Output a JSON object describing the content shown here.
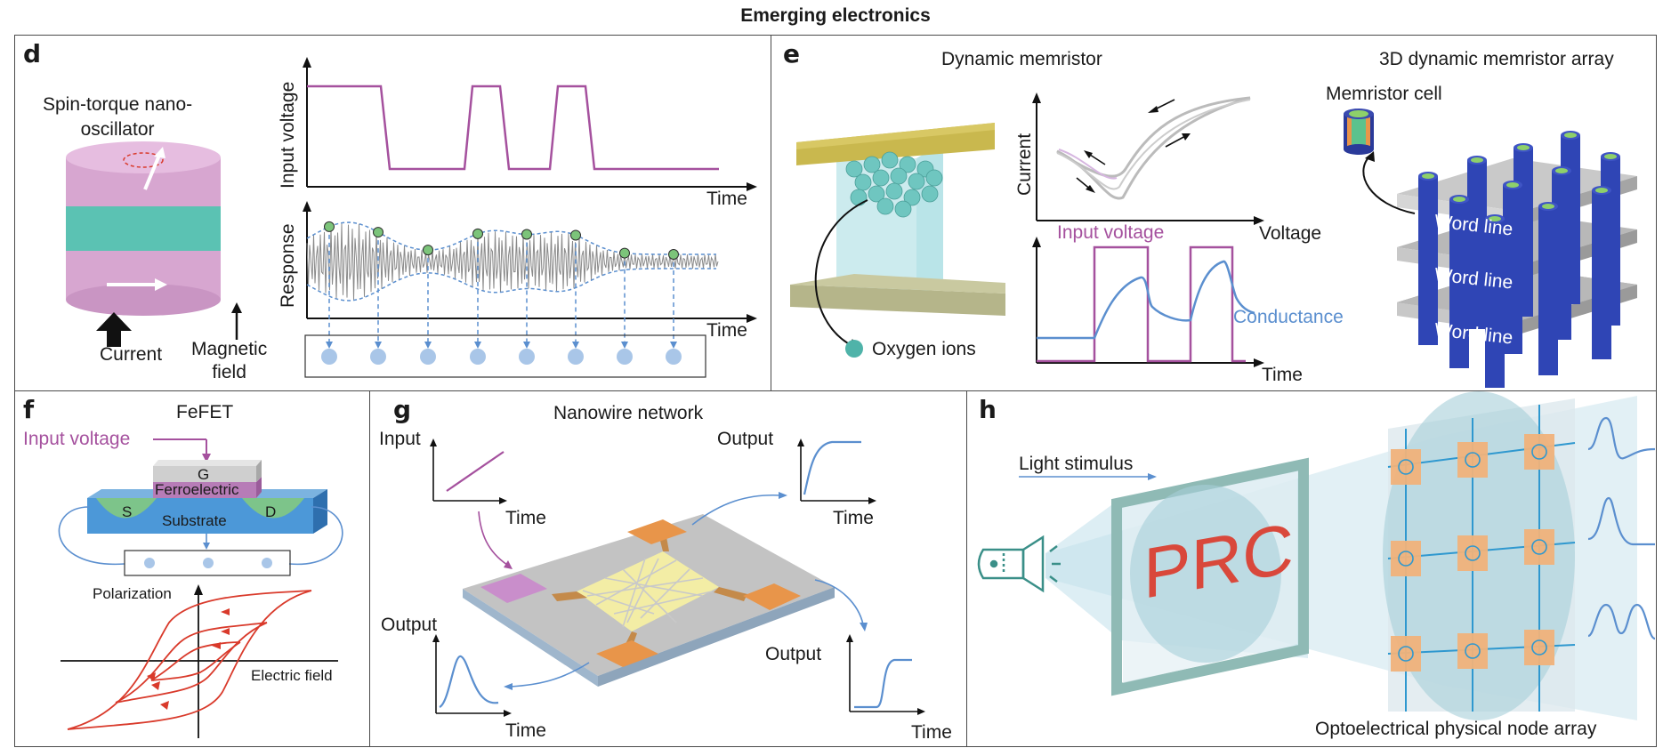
{
  "title": "Emerging electronics",
  "colors": {
    "purple": "#a5519e",
    "blue": "#5b8fcf",
    "red": "#d93a2b",
    "teal": "#4fb3a9",
    "orange": "#e8954a",
    "frame": "#4a4a4a"
  },
  "panel_d": {
    "label": "d",
    "device": "Spin-torque nano-\noscillator",
    "current": "Current",
    "magnetic_field": "Magnetic\nfield",
    "input_axis": "Input voltage",
    "response_axis": "Response",
    "time1": "Time",
    "time2": "Time",
    "icons": [
      "cylinder-stack-icon",
      "arrow-up-icon"
    ]
  },
  "panel_e": {
    "label": "e",
    "title_left": "Dynamic memristor",
    "title_right": "3D dynamic memristor array",
    "oxygen_ions": "Oxygen ions",
    "current_axis": "Current",
    "voltage_axis": "Voltage",
    "input_voltage": "Input voltage",
    "conductance": "Conductance",
    "time": "Time",
    "memristor_cell": "Memristor cell",
    "word_lines": [
      "Word line",
      "Word line",
      "Word line"
    ]
  },
  "panel_f": {
    "label": "f",
    "title": "FeFET",
    "input_voltage": "Input voltage",
    "gate": "G",
    "ferroelectric": "Ferroelectric",
    "substrate": "Substrate",
    "source": "S",
    "drain": "D",
    "polarization": "Polarization",
    "electric_field": "Electric field"
  },
  "panel_g": {
    "label": "g",
    "title": "Nanowire network",
    "input": "Input",
    "time_labels": [
      "Time",
      "Time",
      "Time",
      "Time"
    ],
    "output_labels": [
      "Output",
      "Output",
      "Output"
    ]
  },
  "panel_h": {
    "label": "h",
    "light_stimulus": "Light stimulus",
    "prc": "PRC",
    "array_label": "Optoelectrical physical node array",
    "icons": [
      "projector-icon"
    ]
  }
}
